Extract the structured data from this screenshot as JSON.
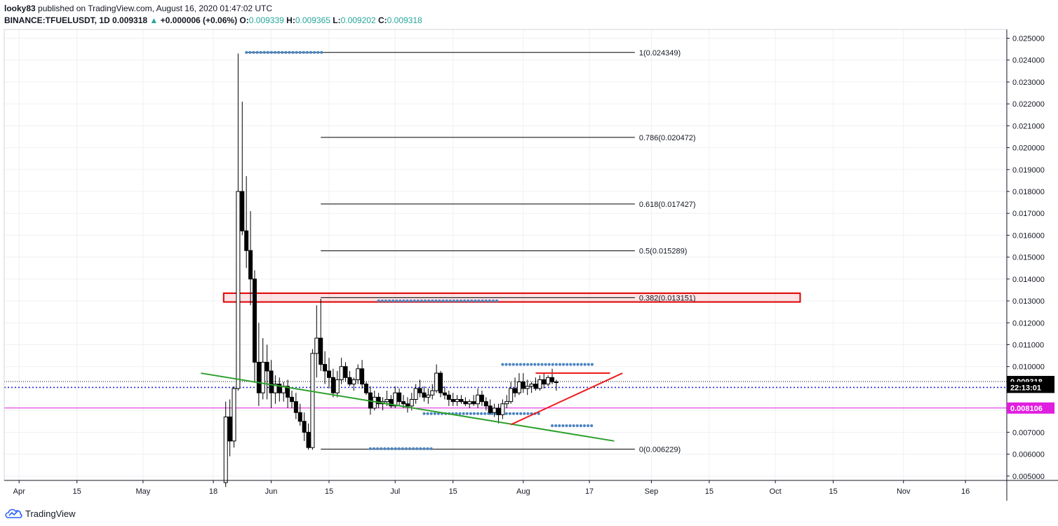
{
  "header": {
    "author": "looky83",
    "published_text": "published on TradingView.com, August 16, 2020 01:47:02 UTC",
    "symbol": "BINANCE:TFUELUSDT, 1D",
    "last": "0.009318",
    "change_arrow": "▲",
    "change": "+0.000006 (+0.06%)",
    "o_label": "O:",
    "o": "0.009339",
    "h_label": "H:",
    "h": "0.009365",
    "l_label": "L:",
    "l": "0.009202",
    "c_label": "C:",
    "c": "0.009318"
  },
  "footer": {
    "brand": "TradingView"
  },
  "chart_data": {
    "type": "candlestick",
    "grid": true,
    "y_axis": {
      "side": "right",
      "ylim": [
        0.0048,
        0.0254
      ],
      "ticks": [
        "0.005000",
        "0.006000",
        "0.007000",
        "0.008000",
        "0.009000",
        "0.010000",
        "0.011000",
        "0.012000",
        "0.013000",
        "0.014000",
        "0.015000",
        "0.016000",
        "0.017000",
        "0.018000",
        "0.019000",
        "0.020000",
        "0.021000",
        "0.022000",
        "0.023000",
        "0.024000",
        "0.025000"
      ]
    },
    "x_axis": {
      "labels": [
        {
          "label": "Apr",
          "day": 0
        },
        {
          "label": "15",
          "day": 14
        },
        {
          "label": "May",
          "day": 30
        },
        {
          "label": "18",
          "day": 47
        },
        {
          "label": "Jun",
          "day": 61
        },
        {
          "label": "15",
          "day": 75
        },
        {
          "label": "Jul",
          "day": 91
        },
        {
          "label": "15",
          "day": 105
        },
        {
          "label": "Aug",
          "day": 122
        },
        {
          "label": "17",
          "day": 138
        },
        {
          "label": "Sep",
          "day": 153
        },
        {
          "label": "15",
          "day": 167
        },
        {
          "label": "Oct",
          "day": 183
        },
        {
          "label": "15",
          "day": 197
        },
        {
          "label": "Nov",
          "day": 214
        },
        {
          "label": "16",
          "day": 229
        }
      ],
      "xlim_days": [
        -3.6,
        239
      ]
    },
    "price_labels": [
      {
        "text": "0.009318",
        "value": 0.009318,
        "color": "#000000"
      },
      {
        "text": "22:13:01",
        "value": 0.00905,
        "color": "#000000"
      },
      {
        "text": "0.008106",
        "value": 0.008106,
        "color": "#e01ee0"
      }
    ],
    "fib_levels": [
      {
        "label": "1(0.024349)",
        "value": 0.024349,
        "x_start_day": 55
      },
      {
        "label": "0.786(0.020472)",
        "value": 0.020472,
        "x_start_day": 73
      },
      {
        "label": "0.618(0.017427)",
        "value": 0.017427,
        "x_start_day": 73
      },
      {
        "label": "0.5(0.015289)",
        "value": 0.015289,
        "x_start_day": 73
      },
      {
        "label": "0.382(0.013151)",
        "value": 0.013151,
        "x_start_day": 73
      },
      {
        "label": "0(0.006229)",
        "value": 0.006229,
        "x_start_day": 73
      }
    ],
    "fib_x_end_day": 149,
    "dotted_levels": [
      {
        "value": 0.024349,
        "x1_day": 55,
        "x2_day": 74
      },
      {
        "value": 0.013,
        "x1_day": 87,
        "x2_day": 116
      },
      {
        "value": 0.0101,
        "x1_day": 117,
        "x2_day": 139
      },
      {
        "value": 0.00785,
        "x1_day": 98,
        "x2_day": 126
      },
      {
        "value": 0.0073,
        "x1_day": 129,
        "x2_day": 139
      },
      {
        "value": 0.00625,
        "x1_day": 85,
        "x2_day": 100
      }
    ],
    "resistance_box": {
      "y_low": 0.012951,
      "y_high": 0.013351,
      "x1_day": 49.5,
      "x2_day": 189
    },
    "hlines": [
      {
        "value": 0.009318,
        "style": "dotted",
        "color": "#000000"
      },
      {
        "value": 0.00905,
        "style": "dashed",
        "color": "#1e1ee0"
      },
      {
        "value": 0.008106,
        "style": "solid",
        "color": "#e01ee0"
      }
    ],
    "trend_lines": [
      {
        "color": "#2ca02c",
        "x1_day": 44,
        "y1": 0.0097,
        "x2_day": 144,
        "y2": 0.0066
      },
      {
        "color": "#ee1c1c",
        "x1_day": 119,
        "y1": 0.00735,
        "x2_day": 146,
        "y2": 0.0097
      },
      {
        "color": "#ee1c1c",
        "x1_day": 125,
        "y1": 0.0097,
        "x2_day": 143,
        "y2": 0.0097
      }
    ],
    "candles": [
      [
        50,
        0.0047,
        0.0084,
        0.0045,
        0.0077
      ],
      [
        51,
        0.0077,
        0.0085,
        0.0059,
        0.0066
      ],
      [
        52,
        0.0066,
        0.0091,
        0.0063,
        0.009
      ],
      [
        53,
        0.009,
        0.0243,
        0.0089,
        0.018
      ],
      [
        54,
        0.018,
        0.0221,
        0.016,
        0.0162
      ],
      [
        55,
        0.0162,
        0.0187,
        0.0145,
        0.0153
      ],
      [
        56,
        0.0153,
        0.0171,
        0.0128,
        0.014
      ],
      [
        57,
        0.014,
        0.0144,
        0.0093,
        0.0102
      ],
      [
        58,
        0.0102,
        0.012,
        0.0082,
        0.0088
      ],
      [
        59,
        0.0088,
        0.0113,
        0.0085,
        0.0102
      ],
      [
        60,
        0.0102,
        0.011,
        0.0085,
        0.0098
      ],
      [
        61,
        0.0098,
        0.0103,
        0.0081,
        0.0088
      ],
      [
        62,
        0.0088,
        0.0096,
        0.0083,
        0.0092
      ],
      [
        63,
        0.0092,
        0.0095,
        0.0084,
        0.0088
      ],
      [
        64,
        0.0088,
        0.0093,
        0.0084,
        0.0091
      ],
      [
        65,
        0.0091,
        0.0094,
        0.0081,
        0.0086
      ],
      [
        66,
        0.0086,
        0.0089,
        0.0081,
        0.0084
      ],
      [
        67,
        0.0084,
        0.0088,
        0.0076,
        0.0079
      ],
      [
        68,
        0.0079,
        0.0083,
        0.0073,
        0.0075
      ],
      [
        69,
        0.0075,
        0.0079,
        0.0066,
        0.007
      ],
      [
        70,
        0.007,
        0.0074,
        0.0062,
        0.0063
      ],
      [
        71,
        0.0063,
        0.0108,
        0.0062,
        0.0106
      ],
      [
        72,
        0.0106,
        0.0128,
        0.0095,
        0.0113
      ],
      [
        73,
        0.0113,
        0.0131,
        0.0098,
        0.0101
      ],
      [
        74,
        0.0101,
        0.0107,
        0.0092,
        0.0098
      ],
      [
        75,
        0.0098,
        0.0104,
        0.009,
        0.0095
      ],
      [
        76,
        0.0095,
        0.0099,
        0.0086,
        0.0088
      ],
      [
        77,
        0.0088,
        0.0098,
        0.0086,
        0.0094
      ],
      [
        78,
        0.0094,
        0.0104,
        0.0092,
        0.01
      ],
      [
        79,
        0.01,
        0.0102,
        0.0093,
        0.0095
      ],
      [
        80,
        0.0095,
        0.0098,
        0.0091,
        0.0092
      ],
      [
        81,
        0.0092,
        0.0095,
        0.0089,
        0.0094
      ],
      [
        82,
        0.0094,
        0.0101,
        0.0092,
        0.0099
      ],
      [
        83,
        0.0099,
        0.0103,
        0.009,
        0.0092
      ],
      [
        84,
        0.0092,
        0.0093,
        0.0087,
        0.0088
      ],
      [
        85,
        0.0088,
        0.0091,
        0.0078,
        0.0081
      ],
      [
        86,
        0.0081,
        0.0089,
        0.008,
        0.0086
      ],
      [
        87,
        0.0086,
        0.0088,
        0.0081,
        0.0083
      ],
      [
        88,
        0.0083,
        0.0086,
        0.008,
        0.0084
      ],
      [
        89,
        0.0084,
        0.0089,
        0.0082,
        0.0085
      ],
      [
        90,
        0.0085,
        0.0087,
        0.0081,
        0.0082
      ],
      [
        91,
        0.0082,
        0.0091,
        0.0081,
        0.0088
      ],
      [
        92,
        0.0088,
        0.009,
        0.0082,
        0.0084
      ],
      [
        93,
        0.0084,
        0.0087,
        0.0081,
        0.0083
      ],
      [
        94,
        0.0083,
        0.0086,
        0.0079,
        0.0082
      ],
      [
        95,
        0.0082,
        0.0088,
        0.008,
        0.0085
      ],
      [
        96,
        0.0085,
        0.0092,
        0.0083,
        0.009
      ],
      [
        97,
        0.009,
        0.0094,
        0.0086,
        0.0088
      ],
      [
        98,
        0.0088,
        0.0091,
        0.0084,
        0.0086
      ],
      [
        99,
        0.0086,
        0.009,
        0.0083,
        0.0087
      ],
      [
        100,
        0.0087,
        0.0092,
        0.0085,
        0.0089
      ],
      [
        101,
        0.0089,
        0.0101,
        0.0088,
        0.0097
      ],
      [
        102,
        0.0097,
        0.0098,
        0.0086,
        0.0088
      ],
      [
        103,
        0.0088,
        0.0091,
        0.0085,
        0.0087
      ],
      [
        104,
        0.0087,
        0.0089,
        0.0082,
        0.0085
      ],
      [
        105,
        0.0085,
        0.0088,
        0.0082,
        0.0084
      ],
      [
        106,
        0.0084,
        0.0087,
        0.0082,
        0.0085
      ],
      [
        107,
        0.0085,
        0.0087,
        0.0083,
        0.0084
      ],
      [
        108,
        0.0084,
        0.0086,
        0.0082,
        0.0083
      ],
      [
        109,
        0.0083,
        0.0085,
        0.0081,
        0.0084
      ],
      [
        110,
        0.0084,
        0.0087,
        0.0082,
        0.0083
      ],
      [
        111,
        0.0083,
        0.009,
        0.0081,
        0.0087
      ],
      [
        112,
        0.0087,
        0.0089,
        0.0082,
        0.0084
      ],
      [
        113,
        0.0084,
        0.0086,
        0.008,
        0.0082
      ],
      [
        114,
        0.0082,
        0.0085,
        0.0078,
        0.0079
      ],
      [
        115,
        0.0079,
        0.0083,
        0.0077,
        0.0081
      ],
      [
        116,
        0.0081,
        0.0083,
        0.0074,
        0.0078
      ],
      [
        117,
        0.0078,
        0.0085,
        0.0076,
        0.0083
      ],
      [
        118,
        0.0083,
        0.0087,
        0.0081,
        0.0084
      ],
      [
        119,
        0.0084,
        0.0093,
        0.0083,
        0.009
      ],
      [
        120,
        0.009,
        0.0095,
        0.0086,
        0.0088
      ],
      [
        121,
        0.0088,
        0.0097,
        0.0087,
        0.0093
      ],
      [
        122,
        0.0093,
        0.0097,
        0.0088,
        0.009
      ],
      [
        123,
        0.009,
        0.0094,
        0.0087,
        0.0091
      ],
      [
        124,
        0.0091,
        0.0093,
        0.0088,
        0.0092
      ],
      [
        125,
        0.0092,
        0.0095,
        0.0089,
        0.009
      ],
      [
        126,
        0.009,
        0.0096,
        0.0089,
        0.0094
      ],
      [
        127,
        0.0094,
        0.0097,
        0.009,
        0.0092
      ],
      [
        128,
        0.0092,
        0.0096,
        0.0091,
        0.0095
      ],
      [
        129,
        0.0095,
        0.0099,
        0.0092,
        0.0093
      ],
      [
        130,
        0.0093,
        0.0094,
        0.0089,
        0.0093
      ]
    ]
  }
}
